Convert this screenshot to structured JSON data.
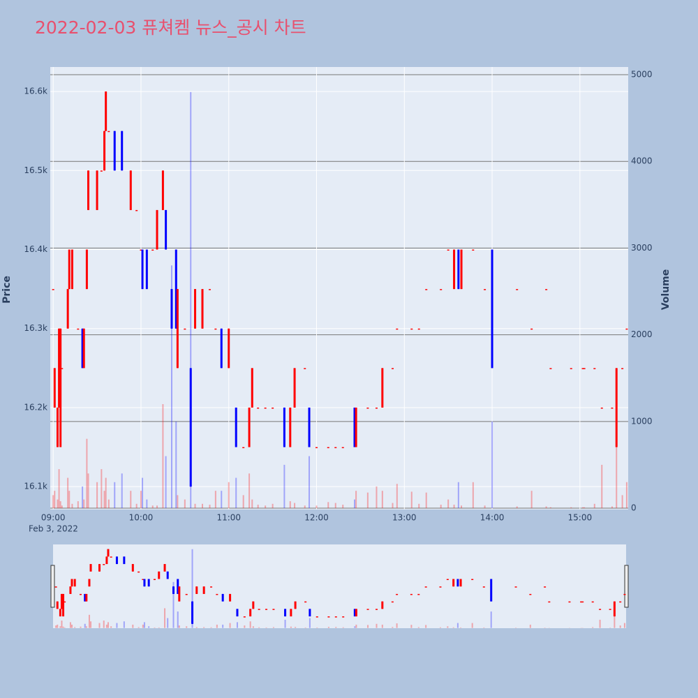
{
  "chart_data": {
    "type": "candlestick",
    "title": "2022-02-03 퓨쳐켐 뉴스_공시 차트",
    "y_title": "Price",
    "y2_title": "Volume",
    "x_date_label": "Feb 3, 2022",
    "increasing_color": "#ff0000",
    "decreasing_color": "#0000ff",
    "xlim": [
      "2022-02-03 08:58",
      "2022-02-03 15:33"
    ],
    "xticks": [
      {
        "value": "2022-02-03 09:00",
        "label": "09:00"
      },
      {
        "value": "2022-02-03 10:00",
        "label": "10:00"
      },
      {
        "value": "2022-02-03 11:00",
        "label": "11:00"
      },
      {
        "value": "2022-02-03 12:00",
        "label": "12:00"
      },
      {
        "value": "2022-02-03 13:00",
        "label": "13:00"
      },
      {
        "value": "2022-02-03 14:00",
        "label": "14:00"
      },
      {
        "value": "2022-02-03 15:00",
        "label": "15:00"
      }
    ],
    "ylim": [
      16071,
      16631
    ],
    "yticks": [
      {
        "value": 16100,
        "label": "16.1k"
      },
      {
        "value": 16200,
        "label": "16.2k"
      },
      {
        "value": 16300,
        "label": "16.3k"
      },
      {
        "value": 16400,
        "label": "16.4k"
      },
      {
        "value": 16500,
        "label": "16.5k"
      },
      {
        "value": 16600,
        "label": "16.6k"
      }
    ],
    "y2lim": [
      -16,
      5089
    ],
    "y2ticks": [
      0,
      1000,
      2000,
      3000,
      4000,
      5000
    ],
    "x": [
      "2022-02-03 09:00",
      "2022-02-03 09:01",
      "2022-02-03 09:03",
      "2022-02-03 09:04",
      "2022-02-03 09:05",
      "2022-02-03 09:06",
      "2022-02-03 09:10",
      "2022-02-03 09:11",
      "2022-02-03 09:13",
      "2022-02-03 09:17",
      "2022-02-03 09:20",
      "2022-02-03 09:21",
      "2022-02-03 09:23",
      "2022-02-03 09:24",
      "2022-02-03 09:30",
      "2022-02-03 09:33",
      "2022-02-03 09:35",
      "2022-02-03 09:36",
      "2022-02-03 09:38",
      "2022-02-03 09:42",
      "2022-02-03 09:47",
      "2022-02-03 09:53",
      "2022-02-03 09:57",
      "2022-02-03 10:00",
      "2022-02-03 10:01",
      "2022-02-03 10:04",
      "2022-02-03 10:08",
      "2022-02-03 10:11",
      "2022-02-03 10:15",
      "2022-02-03 10:17",
      "2022-02-03 10:21",
      "2022-02-03 10:24",
      "2022-02-03 10:25",
      "2022-02-03 10:30",
      "2022-02-03 10:34",
      "2022-02-03 10:37",
      "2022-02-03 10:42",
      "2022-02-03 10:47",
      "2022-02-03 10:51",
      "2022-02-03 10:55",
      "2022-02-03 11:00",
      "2022-02-03 11:05",
      "2022-02-03 11:10",
      "2022-02-03 11:14",
      "2022-02-03 11:16",
      "2022-02-03 11:20",
      "2022-02-03 11:25",
      "2022-02-03 11:30",
      "2022-02-03 11:38",
      "2022-02-03 11:42",
      "2022-02-03 11:45",
      "2022-02-03 11:52",
      "2022-02-03 11:55",
      "2022-02-03 12:00",
      "2022-02-03 12:08",
      "2022-02-03 12:13",
      "2022-02-03 12:18",
      "2022-02-03 12:26",
      "2022-02-03 12:27",
      "2022-02-03 12:35",
      "2022-02-03 12:41",
      "2022-02-03 12:45",
      "2022-02-03 12:52",
      "2022-02-03 12:55",
      "2022-02-03 13:05",
      "2022-02-03 13:10",
      "2022-02-03 13:15",
      "2022-02-03 13:25",
      "2022-02-03 13:30",
      "2022-02-03 13:34",
      "2022-02-03 13:37",
      "2022-02-03 13:39",
      "2022-02-03 13:47",
      "2022-02-03 13:55",
      "2022-02-03 14:00",
      "2022-02-03 14:17",
      "2022-02-03 14:27",
      "2022-02-03 14:37",
      "2022-02-03 14:40",
      "2022-02-03 14:54",
      "2022-02-03 15:02",
      "2022-02-03 15:03",
      "2022-02-03 15:10",
      "2022-02-03 15:15",
      "2022-02-03 15:22",
      "2022-02-03 15:25",
      "2022-02-03 15:29",
      "2022-02-03 15:32"
    ],
    "open": [
      16350,
      16200,
      16150,
      16200,
      16150,
      16250,
      16300,
      16350,
      16350,
      16300,
      16300,
      16250,
      16350,
      16450,
      16450,
      16500,
      16500,
      16550,
      16550,
      16550,
      16550,
      16450,
      16450,
      16400,
      16400,
      16400,
      16400,
      16400,
      16450,
      16450,
      16350,
      16400,
      16250,
      16300,
      16250,
      16300,
      16300,
      16350,
      16300,
      16300,
      16250,
      16200,
      16150,
      16150,
      16200,
      16200,
      16200,
      16200,
      16200,
      16150,
      16200,
      16250,
      16200,
      16150,
      16150,
      16150,
      16150,
      16200,
      16150,
      16200,
      16200,
      16200,
      16250,
      16300,
      16300,
      16300,
      16350,
      16350,
      16400,
      16350,
      16400,
      16350,
      16400,
      16350,
      16400,
      16350,
      16300,
      16350,
      16250,
      16250,
      16250,
      16250,
      16250,
      16200,
      16200,
      16150,
      16250,
      16300
    ],
    "high": [
      16350,
      16250,
      16200,
      16300,
      16300,
      16250,
      16350,
      16400,
      16400,
      16300,
      16300,
      16300,
      16400,
      16500,
      16500,
      16500,
      16550,
      16600,
      16550,
      16550,
      16550,
      16500,
      16450,
      16400,
      16400,
      16400,
      16400,
      16450,
      16500,
      16450,
      16350,
      16400,
      16350,
      16300,
      16250,
      16350,
      16350,
      16350,
      16300,
      16300,
      16300,
      16200,
      16150,
      16200,
      16250,
      16200,
      16200,
      16200,
      16200,
      16200,
      16250,
      16250,
      16200,
      16150,
      16150,
      16150,
      16150,
      16200,
      16200,
      16200,
      16200,
      16250,
      16250,
      16300,
      16300,
      16300,
      16350,
      16350,
      16400,
      16400,
      16400,
      16400,
      16400,
      16350,
      16400,
      16350,
      16300,
      16350,
      16250,
      16250,
      16250,
      16250,
      16250,
      16200,
      16200,
      16250,
      16250,
      16300
    ],
    "low": [
      16350,
      16200,
      16150,
      16200,
      16150,
      16250,
      16300,
      16350,
      16350,
      16300,
      16250,
      16250,
      16350,
      16450,
      16450,
      16500,
      16500,
      16550,
      16550,
      16500,
      16500,
      16450,
      16450,
      16400,
      16350,
      16350,
      16400,
      16400,
      16450,
      16400,
      16300,
      16300,
      16250,
      16300,
      16100,
      16300,
      16300,
      16350,
      16300,
      16250,
      16250,
      16150,
      16150,
      16150,
      16200,
      16200,
      16200,
      16200,
      16150,
      16150,
      16200,
      16250,
      16150,
      16150,
      16150,
      16150,
      16150,
      16150,
      16150,
      16200,
      16200,
      16200,
      16250,
      16300,
      16300,
      16300,
      16350,
      16350,
      16400,
      16350,
      16350,
      16350,
      16400,
      16350,
      16250,
      16350,
      16300,
      16350,
      16250,
      16250,
      16250,
      16250,
      16250,
      16200,
      16200,
      16150,
      16250,
      16300
    ],
    "close": [
      16350,
      16250,
      16200,
      16300,
      16300,
      16250,
      16350,
      16400,
      16400,
      16300,
      16250,
      16300,
      16400,
      16500,
      16500,
      16500,
      16550,
      16600,
      16550,
      16500,
      16500,
      16500,
      16450,
      16400,
      16350,
      16350,
      16400,
      16450,
      16500,
      16400,
      16300,
      16300,
      16350,
      16300,
      16100,
      16350,
      16350,
      16350,
      16300,
      16250,
      16300,
      16150,
      16150,
      16200,
      16250,
      16200,
      16200,
      16200,
      16150,
      16200,
      16250,
      16250,
      16150,
      16150,
      16150,
      16150,
      16150,
      16150,
      16200,
      16200,
      16200,
      16250,
      16250,
      16300,
      16300,
      16300,
      16350,
      16350,
      16400,
      16400,
      16350,
      16400,
      16400,
      16350,
      16250,
      16350,
      16300,
      16350,
      16250,
      16250,
      16250,
      16250,
      16250,
      16200,
      16200,
      16250,
      16250,
      16300
    ],
    "volume": [
      150,
      200,
      100,
      450,
      80,
      30,
      350,
      200,
      50,
      80,
      250,
      100,
      800,
      400,
      300,
      450,
      200,
      350,
      100,
      300,
      400,
      200,
      50,
      200,
      350,
      100,
      30,
      30,
      1200,
      600,
      2800,
      1000,
      150,
      100,
      4800,
      50,
      50,
      40,
      200,
      200,
      300,
      350,
      150,
      400,
      100,
      40,
      30,
      50,
      500,
      80,
      60,
      30,
      600,
      30,
      70,
      60,
      40,
      100,
      200,
      180,
      250,
      200,
      60,
      280,
      190,
      50,
      180,
      40,
      100,
      40,
      300,
      30,
      300,
      30,
      1000,
      20,
      200,
      20,
      10,
      10,
      10,
      10,
      50,
      500,
      20,
      1000,
      150,
      300
    ]
  }
}
